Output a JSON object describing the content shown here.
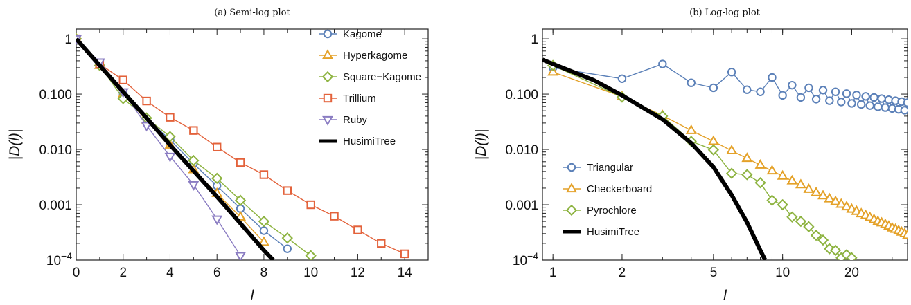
{
  "chart_data": [
    {
      "type": "line",
      "title": "(a) Semi-log plot",
      "xlabel": "l",
      "ylabel": "|D(l)|",
      "xlim": [
        0,
        15
      ],
      "ylim": [
        0.0001,
        1.5
      ],
      "yscale": "log",
      "x_ticks": [
        "0",
        "2",
        "4",
        "6",
        "8",
        "10",
        "12",
        "14"
      ],
      "y_ticks": [
        "10^-4",
        "0.001",
        "0.010",
        "0.100",
        "1"
      ],
      "legend_position": "top-right",
      "series": [
        {
          "name": "Kagome",
          "marker": "circle",
          "color": "#5b80b8",
          "x": [
            0,
            1,
            2,
            3,
            4,
            5,
            6,
            7,
            8,
            9
          ],
          "y": [
            1,
            0.33,
            0.1,
            0.036,
            0.015,
            0.0055,
            0.0022,
            0.00085,
            0.00034,
            0.00016
          ]
        },
        {
          "name": "Hyperkagome",
          "marker": "triangle",
          "color": "#e4a128",
          "x": [
            0,
            1,
            2,
            3,
            4,
            5,
            6,
            7,
            8
          ],
          "y": [
            1,
            0.33,
            0.1,
            0.033,
            0.012,
            0.0043,
            0.0016,
            0.0006,
            0.00021
          ]
        },
        {
          "name": "Square−Kagome",
          "marker": "diamond",
          "color": "#8db340",
          "x": [
            0,
            1,
            2,
            3,
            4,
            5,
            6,
            7,
            8,
            9,
            10
          ],
          "y": [
            1,
            0.33,
            0.083,
            0.037,
            0.017,
            0.0063,
            0.003,
            0.0012,
            0.0005,
            0.00025,
            0.00012
          ]
        },
        {
          "name": "Trillium",
          "marker": "square",
          "color": "#e3623b",
          "x": [
            0,
            1,
            2,
            3,
            4,
            5,
            6,
            7,
            8,
            9,
            10,
            11,
            12,
            13,
            14
          ],
          "y": [
            1,
            0.35,
            0.18,
            0.075,
            0.038,
            0.022,
            0.011,
            0.0058,
            0.0035,
            0.0018,
            0.001,
            0.00062,
            0.00035,
            0.0002,
            0.00013
          ]
        },
        {
          "name": "Ruby",
          "marker": "triangle-down",
          "color": "#8a7cc2",
          "x": [
            0,
            1,
            2,
            3,
            4,
            5,
            6,
            7
          ],
          "y": [
            1,
            0.38,
            0.11,
            0.027,
            0.0075,
            0.0023,
            0.00055,
            0.00012
          ]
        },
        {
          "name": "HusimiTree",
          "marker": "none",
          "color": "#000000",
          "x": [
            0,
            1,
            2,
            3,
            4,
            5,
            6,
            7,
            8,
            8.4
          ],
          "y": [
            1,
            0.33,
            0.11,
            0.037,
            0.012,
            0.0041,
            0.0014,
            0.00046,
            0.00015,
            0.0001
          ]
        }
      ]
    },
    {
      "type": "line",
      "title": "(b) Log-log plot",
      "xlabel": "l",
      "ylabel": "|D(l)|",
      "xlim": [
        0.9,
        35
      ],
      "ylim": [
        0.0001,
        1.5
      ],
      "xscale": "log",
      "yscale": "log",
      "x_ticks": [
        "1",
        "2",
        "5",
        "10",
        "20"
      ],
      "y_ticks": [
        "10^-4",
        "0.001",
        "0.010",
        "0.100",
        "1"
      ],
      "legend_position": "bottom-left",
      "series": [
        {
          "name": "Triangular",
          "marker": "circle",
          "color": "#5b80b8",
          "x": [
            1,
            2,
            3,
            4,
            5,
            6,
            7,
            8,
            9,
            10,
            11,
            12,
            13,
            14,
            15,
            16,
            17,
            18,
            19,
            20,
            21,
            22,
            23,
            24,
            25,
            26,
            27,
            28,
            29,
            30,
            31,
            32,
            33,
            34,
            35
          ],
          "y": [
            0.3,
            0.19,
            0.35,
            0.16,
            0.13,
            0.25,
            0.12,
            0.11,
            0.2,
            0.095,
            0.145,
            0.087,
            0.13,
            0.081,
            0.118,
            0.076,
            0.11,
            0.072,
            0.102,
            0.068,
            0.096,
            0.065,
            0.091,
            0.062,
            0.087,
            0.059,
            0.083,
            0.057,
            0.079,
            0.055,
            0.076,
            0.053,
            0.073,
            0.051,
            0.07
          ]
        },
        {
          "name": "Checkerboard",
          "marker": "triangle",
          "color": "#e4a128",
          "x": [
            1,
            2,
            3,
            4,
            5,
            6,
            7,
            8,
            9,
            10,
            11,
            12,
            13,
            14,
            15,
            16,
            17,
            18,
            19,
            20,
            21,
            22,
            23,
            24,
            25,
            26,
            27,
            28,
            29,
            30,
            31,
            32,
            33,
            34,
            35
          ],
          "y": [
            0.25,
            0.09,
            0.041,
            0.022,
            0.014,
            0.0095,
            0.0069,
            0.0052,
            0.0041,
            0.0033,
            0.0027,
            0.0023,
            0.0019,
            0.00165,
            0.00145,
            0.00128,
            0.00114,
            0.00102,
            0.00092,
            0.00083,
            0.00076,
            0.00069,
            0.00064,
            0.00059,
            0.00054,
            0.0005,
            0.00047,
            0.00044,
            0.00041,
            0.00038,
            0.00036,
            0.00034,
            0.00032,
            0.0003,
            0.00028
          ]
        },
        {
          "name": "Pyrochlore",
          "marker": "diamond",
          "color": "#8db340",
          "x": [
            1,
            2,
            3,
            4,
            5,
            6,
            7,
            8,
            9,
            10,
            11,
            12,
            13,
            14,
            15,
            16,
            17,
            18,
            19,
            20
          ],
          "y": [
            0.33,
            0.088,
            0.04,
            0.014,
            0.0098,
            0.0037,
            0.0035,
            0.0025,
            0.0012,
            0.001,
            0.0006,
            0.0005,
            0.0004,
            0.00028,
            0.00023,
            0.00016,
            0.00015,
            0.00011,
            0.000125,
            0.00011
          ]
        },
        {
          "name": "HusimiTree",
          "marker": "none",
          "color": "#000000",
          "x": [
            0.9,
            1,
            1.5,
            2,
            3,
            4,
            5,
            6,
            7,
            8,
            8.4
          ],
          "y": [
            0.42,
            0.35,
            0.18,
            0.095,
            0.035,
            0.013,
            0.0048,
            0.0015,
            0.00048,
            0.00015,
            0.0001
          ]
        }
      ]
    }
  ]
}
